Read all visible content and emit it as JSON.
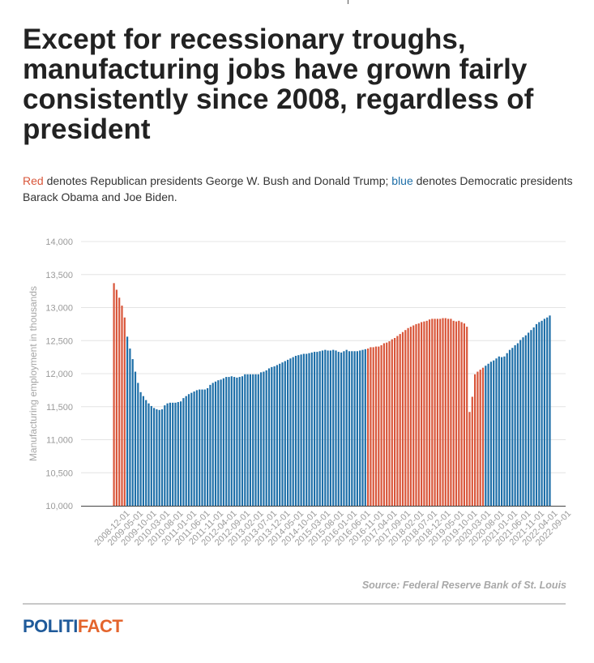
{
  "header": {
    "title": "Except for recessionary troughs, manufacturing jobs have grown fairly consistently since 2008, regardless of president",
    "subtitle": {
      "red_word": "Red",
      "text1": " denotes Republican presidents George W. Bush and Donald Trump; ",
      "blue_word": "blue",
      "text2": " denotes Democratic presidents Barack Obama and Joe Biden."
    }
  },
  "footer": {
    "source": "Source: Federal Reserve Bank of St. Louis",
    "logo_part1": "POLITI",
    "logo_part2": "FACT"
  },
  "colors": {
    "republican": "#d9563a",
    "democratic": "#1e6fa8"
  },
  "chart_data": {
    "type": "bar",
    "ylabel": "Manufacturing employment in thousands",
    "ylim": [
      10000,
      14000
    ],
    "yticks": [
      10000,
      10500,
      11000,
      11500,
      12000,
      12500,
      13000,
      13500,
      14000
    ],
    "ytick_labels": [
      "10,000",
      "10,500",
      "11,000",
      "11,500",
      "12,000",
      "12,500",
      "13,000",
      "13,500",
      "14,000"
    ],
    "grid": true,
    "start_month": "2008-12",
    "xtick_labels": [
      "2008-12-01",
      "2009-05-01",
      "2009-10-01",
      "2010-03-01",
      "2010-08-01",
      "2011-01-01",
      "2011-06-01",
      "2011-11-01",
      "2012-04-01",
      "2012-09-01",
      "2013-02-01",
      "2013-07-01",
      "2013-12-01",
      "2014-05-01",
      "2014-10-01",
      "2015-03-01",
      "2015-08-01",
      "2016-01-01",
      "2016-06-01",
      "2016-11-01",
      "2017-04-01",
      "2017-09-01",
      "2018-02-01",
      "2018-07-01",
      "2018-12-01",
      "2019-05-01",
      "2019-10-01",
      "2020-03-01",
      "2020-08-01",
      "2021-01-01",
      "2021-06-01",
      "2021-11-01",
      "2022-04-01",
      "2022-09-01"
    ],
    "series": [
      {
        "party": "republican",
        "values": [
          13370,
          13270,
          13150,
          13030,
          12850
        ]
      },
      {
        "party": "democratic",
        "values": [
          12560,
          12380,
          12220,
          12030,
          11860,
          11720,
          11660,
          11600,
          11550,
          11510,
          11480,
          11460,
          11450,
          11460,
          11520,
          11550,
          11560,
          11560,
          11560,
          11570,
          11580,
          11630,
          11660,
          11690,
          11710,
          11730,
          11750,
          11760,
          11760,
          11760,
          11780,
          11830,
          11860,
          11880,
          11900,
          11910,
          11930,
          11950,
          11950,
          11960,
          11950,
          11940,
          11950,
          11960,
          11990,
          11990,
          11990,
          11990,
          11990,
          11990,
          12020,
          12030,
          12050,
          12080,
          12100,
          12110,
          12130,
          12150,
          12170,
          12190,
          12210,
          12230,
          12250,
          12270,
          12280,
          12290,
          12300,
          12300,
          12310,
          12320,
          12330,
          12330,
          12340,
          12350,
          12360,
          12350,
          12350,
          12360,
          12350,
          12330,
          12320,
          12340,
          12360,
          12340,
          12340,
          12340,
          12340,
          12350,
          12360,
          12370
        ]
      },
      {
        "party": "republican",
        "values": [
          12380,
          12400,
          12400,
          12410,
          12410,
          12430,
          12460,
          12470,
          12490,
          12520,
          12540,
          12570,
          12600,
          12630,
          12660,
          12690,
          12710,
          12730,
          12750,
          12760,
          12780,
          12790,
          12800,
          12820,
          12830,
          12830,
          12830,
          12830,
          12840,
          12840,
          12830,
          12830,
          12800,
          12790,
          12800,
          12780,
          12760,
          12710,
          11420,
          11650,
          11990,
          12030,
          12060,
          12090
        ]
      },
      {
        "party": "democratic",
        "values": [
          12120,
          12150,
          12180,
          12200,
          12230,
          12260,
          12250,
          12260,
          12310,
          12360,
          12390,
          12430,
          12460,
          12510,
          12550,
          12580,
          12620,
          12660,
          12700,
          12750,
          12780,
          12800,
          12830,
          12850,
          12880
        ]
      }
    ]
  }
}
